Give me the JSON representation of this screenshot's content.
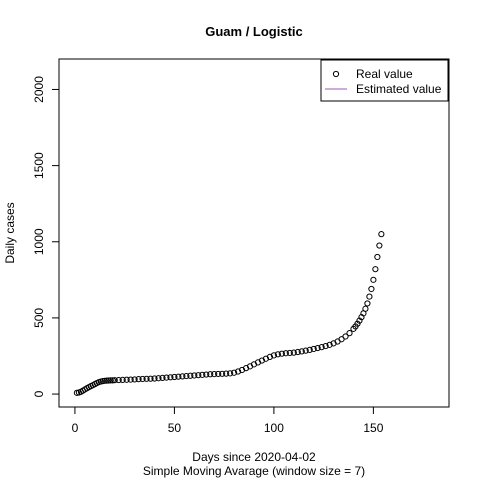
{
  "chart_data": {
    "type": "scatter",
    "title": "Guam / Logistic",
    "xlabel": "Days since 2020-04-02",
    "xlabel2": "Simple Moving Avarage (window size = 7)",
    "ylabel": "Daily cases",
    "xlim": [
      -8,
      188
    ],
    "ylim": [
      -85,
      2200
    ],
    "xticks": [
      0,
      50,
      100,
      150
    ],
    "yticks": [
      0,
      500,
      1000,
      1500,
      2000
    ],
    "grid": false,
    "legend_position": "top-right",
    "legend": [
      {
        "label": "Real value",
        "kind": "point"
      },
      {
        "label": "Estimated value",
        "kind": "line",
        "color": "#9b59b6"
      }
    ],
    "series": [
      {
        "name": "Real value",
        "points": [
          [
            1,
            8
          ],
          [
            2,
            10
          ],
          [
            3,
            15
          ],
          [
            4,
            22
          ],
          [
            5,
            30
          ],
          [
            6,
            38
          ],
          [
            7,
            45
          ],
          [
            8,
            52
          ],
          [
            9,
            58
          ],
          [
            10,
            65
          ],
          [
            11,
            72
          ],
          [
            12,
            78
          ],
          [
            13,
            82
          ],
          [
            14,
            85
          ],
          [
            15,
            87
          ],
          [
            16,
            88
          ],
          [
            17,
            89
          ],
          [
            18,
            90
          ],
          [
            19,
            90
          ],
          [
            20,
            91
          ],
          [
            22,
            92
          ],
          [
            24,
            93
          ],
          [
            26,
            94
          ],
          [
            28,
            95
          ],
          [
            30,
            96
          ],
          [
            32,
            98
          ],
          [
            34,
            99
          ],
          [
            36,
            100
          ],
          [
            38,
            101
          ],
          [
            40,
            102
          ],
          [
            42,
            104
          ],
          [
            44,
            106
          ],
          [
            46,
            108
          ],
          [
            48,
            110
          ],
          [
            50,
            112
          ],
          [
            52,
            114
          ],
          [
            54,
            116
          ],
          [
            56,
            118
          ],
          [
            58,
            120
          ],
          [
            60,
            122
          ],
          [
            62,
            124
          ],
          [
            64,
            126
          ],
          [
            66,
            128
          ],
          [
            68,
            130
          ],
          [
            70,
            131
          ],
          [
            72,
            132
          ],
          [
            74,
            133
          ],
          [
            76,
            134
          ],
          [
            78,
            136
          ],
          [
            80,
            140
          ],
          [
            82,
            148
          ],
          [
            84,
            158
          ],
          [
            86,
            170
          ],
          [
            88,
            182
          ],
          [
            90,
            195
          ],
          [
            92,
            208
          ],
          [
            94,
            220
          ],
          [
            96,
            232
          ],
          [
            98,
            244
          ],
          [
            100,
            254
          ],
          [
            102,
            261
          ],
          [
            104,
            265
          ],
          [
            106,
            268
          ],
          [
            108,
            270
          ],
          [
            110,
            272
          ],
          [
            112,
            276
          ],
          [
            114,
            280
          ],
          [
            116,
            285
          ],
          [
            118,
            290
          ],
          [
            120,
            296
          ],
          [
            122,
            302
          ],
          [
            124,
            308
          ],
          [
            126,
            315
          ],
          [
            128,
            323
          ],
          [
            130,
            333
          ],
          [
            132,
            345
          ],
          [
            134,
            360
          ],
          [
            136,
            378
          ],
          [
            138,
            400
          ],
          [
            140,
            428
          ],
          [
            141,
            444
          ],
          [
            142,
            462
          ],
          [
            143,
            482
          ],
          [
            144,
            505
          ],
          [
            145,
            530
          ],
          [
            146,
            560
          ],
          [
            147,
            595
          ],
          [
            148,
            640
          ],
          [
            149,
            690
          ],
          [
            150,
            750
          ],
          [
            151,
            820
          ],
          [
            152,
            900
          ],
          [
            153,
            975
          ],
          [
            154,
            1050
          ]
        ]
      }
    ]
  }
}
